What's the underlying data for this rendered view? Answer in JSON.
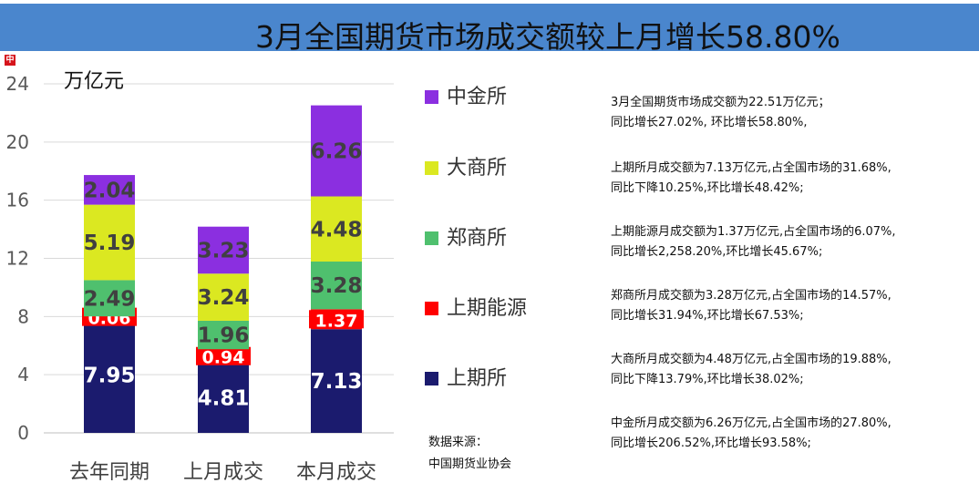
{
  "title": "3月全国期货市场成交额较上月增长58.80%",
  "logo_text": "中期",
  "chart_data": {
    "type": "bar",
    "stacked": true,
    "ylabel": "万亿元",
    "ylim": [
      0,
      24
    ],
    "yticks": [
      "0",
      "4",
      "8",
      "12",
      "16",
      "20",
      "24"
    ],
    "grid": true,
    "legend_position": "right",
    "categories": [
      "去年同期",
      "上月成交",
      "本月成交"
    ],
    "series": [
      {
        "name": "上期所",
        "color": "#1b1b6e",
        "values": [
          7.95,
          4.81,
          7.13
        ],
        "labels": [
          "7.95",
          "4.81",
          "7.13"
        ]
      },
      {
        "name": "上期能源",
        "color": "#ff0000",
        "values": [
          0.06,
          0.94,
          1.37
        ],
        "labels": [
          "0.06",
          "0.94",
          "1.37"
        ]
      },
      {
        "name": "郑商所",
        "color": "#4fc06e",
        "values": [
          2.49,
          1.96,
          3.28
        ],
        "labels": [
          "2.49",
          "1.96",
          "3.28"
        ]
      },
      {
        "name": "大商所",
        "color": "#dbe821",
        "values": [
          5.19,
          3.24,
          4.48
        ],
        "labels": [
          "5.19",
          "3.24",
          "4.48"
        ]
      },
      {
        "name": "中金所",
        "color": "#8b2fe0",
        "values": [
          2.04,
          3.23,
          6.26
        ],
        "labels": [
          "2.04",
          "3.23",
          "6.26"
        ]
      }
    ]
  },
  "legend_order": [
    4,
    3,
    2,
    1,
    0
  ],
  "notes": [
    {
      "lines": [
        "3月全国期货市场成交额为22.51万亿元；",
        "同比增长27.02%, 环比增长58.80%,"
      ]
    },
    {
      "lines": [
        "上期所月成交额为7.13万亿元,占全国市场的31.68%,",
        "同比下降10.25%,环比增长48.42%;"
      ]
    },
    {
      "lines": [
        "上期能源月成交额为1.37万亿元,占全国市场的6.07%,",
        "同比增长2,258.20%,环比增长45.67%;"
      ]
    },
    {
      "lines": [
        "郑商所月成交额为3.28万亿元,占全国市场的14.57%,",
        "同比增长31.94%,环比增长67.53%;"
      ]
    },
    {
      "lines": [
        "大商所月成交额为4.48万亿元,占全国市场的19.88%,",
        "同比下降13.79%,环比增长38.02%;"
      ]
    },
    {
      "lines": [
        "中金所月成交额为6.26万亿元,占全国市场的27.80%,",
        "同比增长206.52%,环比增长93.58%;"
      ]
    }
  ],
  "source": {
    "label": "数据来源：",
    "value": "中国期货业协会"
  }
}
